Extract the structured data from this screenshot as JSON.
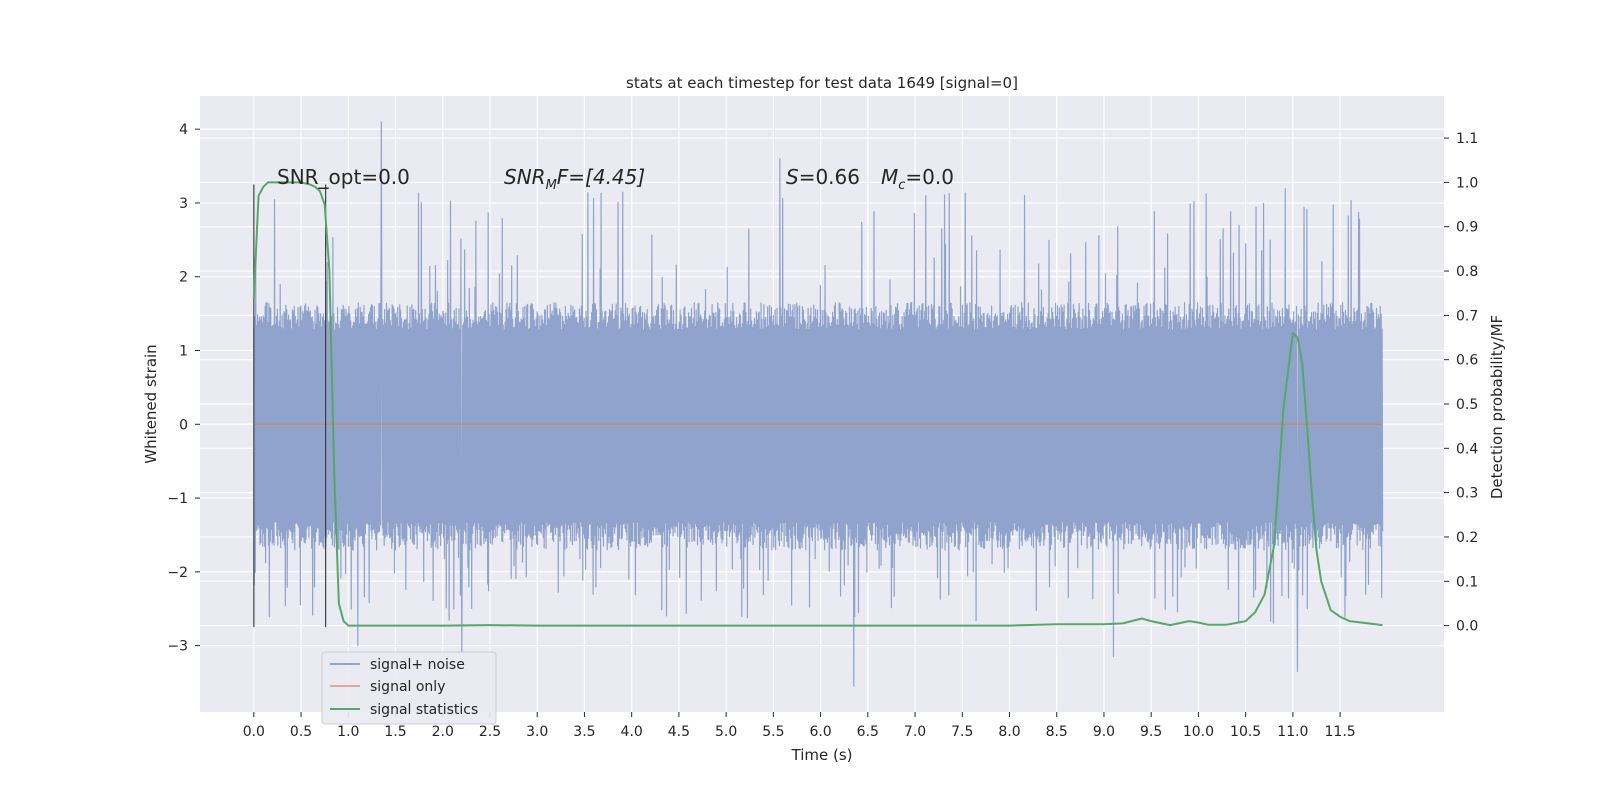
{
  "chart_data": {
    "type": "line",
    "title": "stats at each timestep for test data 1649 [signal=0]",
    "xlabel": "Time (s)",
    "ylabel_left": "Whitened strain",
    "ylabel_right": "Detection probability/MF",
    "xlim": [
      -0.57,
      12.6
    ],
    "ylim_left": [
      -3.9,
      4.45
    ],
    "ylim_right": [
      -0.195,
      1.195
    ],
    "x_ticks": [
      "0.0",
      "0.5",
      "1.0",
      "1.5",
      "2.0",
      "2.5",
      "3.0",
      "3.5",
      "4.0",
      "4.5",
      "5.0",
      "5.5",
      "6.0",
      "6.5",
      "7.0",
      "7.5",
      "8.0",
      "8.5",
      "9.0",
      "9.5",
      "10.0",
      "10.5",
      "11.0",
      "11.5"
    ],
    "y_ticks_left": [
      "−3",
      "−2",
      "−1",
      "0",
      "1",
      "2",
      "3",
      "4"
    ],
    "y_ticks_left_values": [
      -3,
      -2,
      -1,
      0,
      1,
      2,
      3,
      4
    ],
    "y_ticks_right": [
      "0.0",
      "0.1",
      "0.2",
      "0.3",
      "0.4",
      "0.5",
      "0.6",
      "0.7",
      "0.8",
      "0.9",
      "1.0",
      "1.1"
    ],
    "y_ticks_right_values": [
      0,
      0.1,
      0.2,
      0.3,
      0.4,
      0.5,
      0.6,
      0.7,
      0.8,
      0.9,
      1.0,
      1.1
    ],
    "grid": true,
    "legend_placement": "lower-left",
    "colors": {
      "noise": "#8fa3cc",
      "signal_only": "#dd8452",
      "statistics": "#55a868",
      "marker": "#404040",
      "background": "#eaeaf2",
      "grid": "#ffffff"
    },
    "annotations": {
      "snr_opt": "SNR_opt=0.0",
      "snr_mf_var": "SNR",
      "snr_mf_sub": "M",
      "snr_mf_rest": "F=[4.45]",
      "s_var": "S",
      "s_rest": "=0.66",
      "mc_var": "M",
      "mc_sub": "c",
      "mc_rest": "=0.0"
    },
    "vertical_markers": [
      0.0,
      0.76
    ],
    "series": [
      {
        "name": "signal+ noise",
        "axis": "left",
        "x_range": [
          0.0,
          11.95
        ],
        "band_typical": [
          -1.55,
          1.5
        ],
        "spike_max": 4.1,
        "spike_min": -3.55,
        "notable_spikes": [
          [
            1.35,
            4.1
          ],
          [
            5.57,
            3.6
          ],
          [
            6.35,
            -3.55
          ],
          [
            11.05,
            -3.35
          ],
          [
            9.1,
            -3.15
          ],
          [
            2.2,
            -3.1
          ],
          [
            1.1,
            -3.0
          ]
        ]
      },
      {
        "name": "signal only",
        "axis": "left",
        "x": [
          0.0,
          11.95
        ],
        "y": [
          0.0,
          0.0
        ]
      },
      {
        "name": "signal statistics",
        "axis": "right",
        "x": [
          0.0,
          0.05,
          0.1,
          0.15,
          0.2,
          0.3,
          0.4,
          0.5,
          0.6,
          0.65,
          0.7,
          0.75,
          0.8,
          0.85,
          0.9,
          0.95,
          1.0,
          1.2,
          1.5,
          2.0,
          2.5,
          3.0,
          4.0,
          5.0,
          6.0,
          6.5,
          7.0,
          8.0,
          8.5,
          9.0,
          9.2,
          9.4,
          9.5,
          9.7,
          9.9,
          10.0,
          10.1,
          10.3,
          10.5,
          10.6,
          10.7,
          10.8,
          10.85,
          10.9,
          11.0,
          11.05,
          11.1,
          11.15,
          11.2,
          11.25,
          11.3,
          11.4,
          11.5,
          11.6,
          11.8,
          11.95
        ],
        "y": [
          0.74,
          0.97,
          0.99,
          1.0,
          1.0,
          1.0,
          1.0,
          1.0,
          0.995,
          0.99,
          0.98,
          0.95,
          0.8,
          0.35,
          0.05,
          0.01,
          0.0,
          0.0,
          0.0,
          0.0,
          0.001,
          0.0,
          0.0,
          0.0,
          0.0,
          0.0,
          0.0,
          0.0,
          0.003,
          0.003,
          0.005,
          0.016,
          0.01,
          0.001,
          0.01,
          0.007,
          0.002,
          0.002,
          0.01,
          0.03,
          0.07,
          0.18,
          0.33,
          0.49,
          0.66,
          0.65,
          0.59,
          0.45,
          0.3,
          0.17,
          0.1,
          0.035,
          0.02,
          0.01,
          0.005,
          0.001
        ]
      }
    ]
  }
}
